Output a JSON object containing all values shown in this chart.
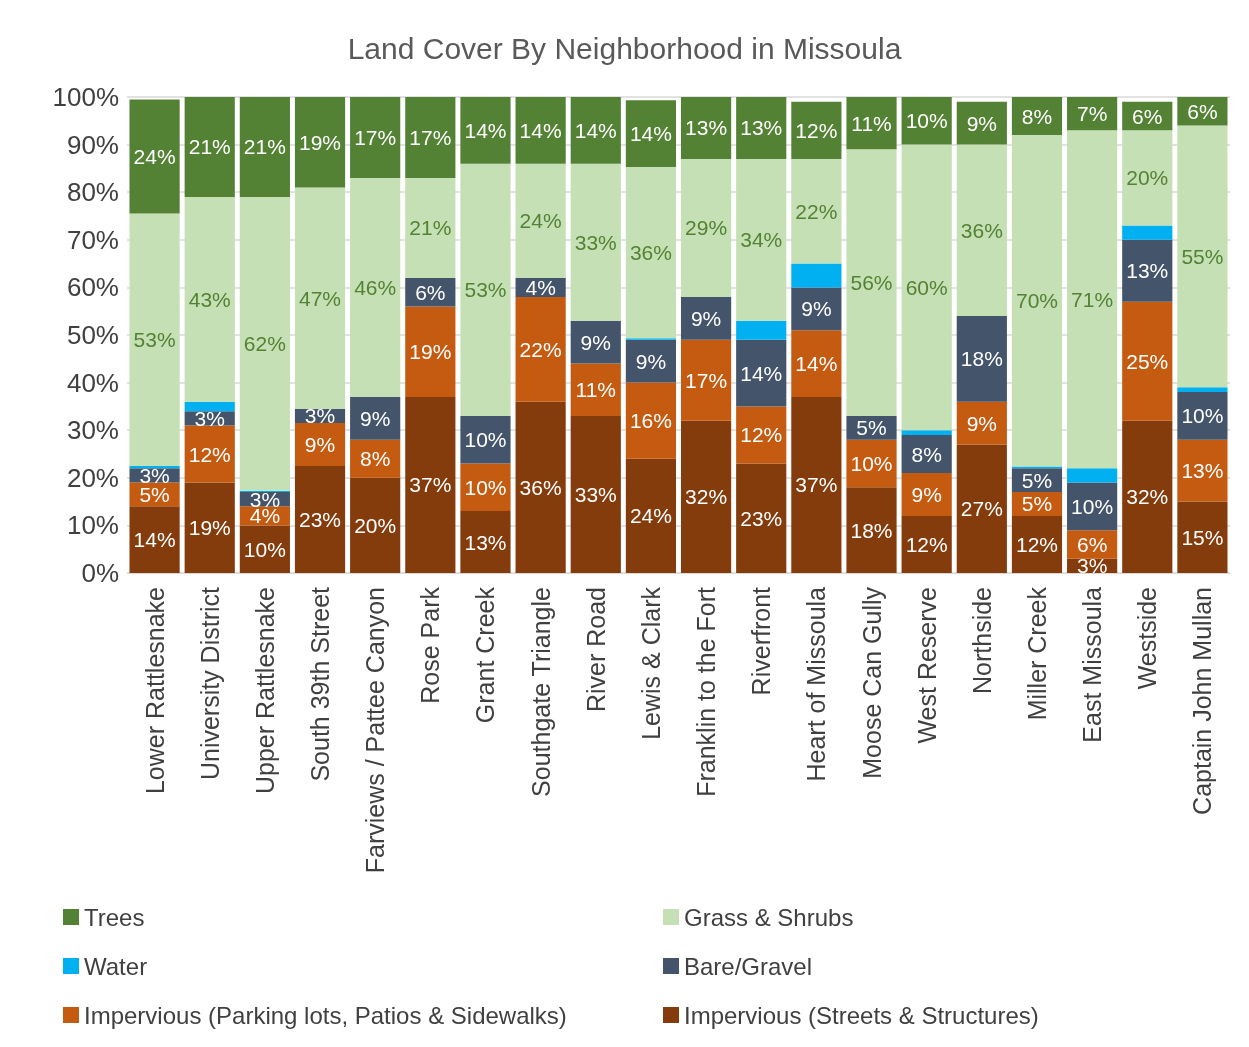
{
  "chart_data": {
    "type": "bar",
    "title": "Land Cover By Neighborhood in Missoula",
    "stacked": true,
    "categories": [
      "Lower Rattlesnake",
      "University District",
      "Upper Rattlesnake",
      "South 39th Street",
      "Farviews / Pattee Canyon",
      "Rose Park",
      "Grant Creek",
      "Southgate Triangle",
      "River Road",
      "Lewis & Clark",
      "Franklin to the Fort",
      "Riverfront",
      "Heart of Missoula",
      "Moose Can Gully",
      "West Reserve",
      "Northside",
      "Miller Creek",
      "East Missoula",
      "Westside",
      "Captain John Mullan"
    ],
    "series": [
      {
        "name": "Impervious (Streets & Structures)",
        "color": "#843c0c",
        "values": [
          14,
          19,
          10,
          22.5,
          20,
          37,
          13,
          36,
          33,
          24,
          32,
          23,
          37,
          18,
          12,
          27,
          12,
          3,
          32,
          15
        ],
        "value_labels": [
          "14%",
          "19%",
          "10%",
          "23%",
          "20%",
          "37%",
          "13%",
          "36%",
          "33%",
          "24%",
          "32%",
          "23%",
          "37%",
          "18%",
          "12%",
          "27%",
          "12%",
          "3%",
          "32%",
          "15%"
        ]
      },
      {
        "name": "Impervious (Parking lots, Patios & Sidewalks)",
        "color": "#c55a11",
        "values": [
          5,
          12,
          4,
          9,
          8,
          19,
          10,
          22,
          11,
          16,
          17,
          12,
          14,
          10,
          9,
          9,
          5,
          6,
          25,
          13
        ],
        "value_labels": [
          "5%",
          "12%",
          "4%",
          "9%",
          "8%",
          "19%",
          "10%",
          "22%",
          "11%",
          "16%",
          "17%",
          "12%",
          "14%",
          "10%",
          "9%",
          "9%",
          "5%",
          "6%",
          "25%",
          "13%"
        ]
      },
      {
        "name": "Bare/Gravel",
        "color": "#44546a",
        "values": [
          3,
          3,
          3,
          3,
          9,
          6,
          10,
          4,
          9,
          9,
          9,
          14,
          9,
          5,
          8,
          18,
          5,
          10,
          13,
          10
        ],
        "value_labels": [
          "3%",
          "3%",
          "3%",
          "3%",
          "9%",
          "6%",
          "10%",
          "4%",
          "9%",
          "9%",
          "9%",
          "14%",
          "9%",
          "5%",
          "8%",
          "18%",
          "5%",
          "10%",
          "13%",
          "10%"
        ]
      },
      {
        "name": "Water",
        "color": "#00b0f0",
        "values": [
          0.5,
          2,
          0.3,
          0,
          0,
          0,
          0,
          0,
          0,
          0.3,
          0,
          4,
          5,
          0,
          1,
          0,
          0.4,
          3,
          3,
          1
        ]
      },
      {
        "name": "Grass & Shrubs",
        "color": "#c5e0b4",
        "values": [
          53,
          43,
          61.7,
          46.5,
          46,
          21,
          53,
          24,
          33,
          36,
          29,
          34,
          22,
          56,
          60,
          36,
          69.6,
          71,
          20,
          55
        ],
        "value_labels": [
          "53%",
          "43%",
          "62%",
          "47%",
          "46%",
          "21%",
          "53%",
          "24%",
          "33%",
          "36%",
          "29%",
          "34%",
          "22%",
          "56%",
          "60%",
          "36%",
          "70%",
          "71%",
          "20%",
          "55%"
        ]
      },
      {
        "name": "Trees",
        "color": "#548235",
        "values": [
          24,
          21,
          21,
          19,
          17,
          17,
          14,
          14,
          14,
          14,
          13,
          13,
          12,
          11,
          10,
          9,
          8,
          7,
          6,
          6
        ],
        "value_labels": [
          "24%",
          "21%",
          "21%",
          "19%",
          "17%",
          "17%",
          "14%",
          "14%",
          "14%",
          "14%",
          "13%",
          "13%",
          "12%",
          "11%",
          "10%",
          "9%",
          "8%",
          "7%",
          "6%",
          "6%"
        ]
      }
    ],
    "ylim": [
      0,
      100
    ],
    "yticks": [
      {
        "value": 0,
        "label": "0%"
      },
      {
        "value": 10,
        "label": "10%"
      },
      {
        "value": 20,
        "label": "20%"
      },
      {
        "value": 30,
        "label": "30%"
      },
      {
        "value": 40,
        "label": "40%"
      },
      {
        "value": 50,
        "label": "50%"
      },
      {
        "value": 60,
        "label": "60%"
      },
      {
        "value": 70,
        "label": "70%"
      },
      {
        "value": 80,
        "label": "80%"
      },
      {
        "value": 90,
        "label": "90%"
      },
      {
        "value": 100,
        "label": "100%"
      }
    ],
    "grid": "y",
    "legend": "bottom"
  }
}
